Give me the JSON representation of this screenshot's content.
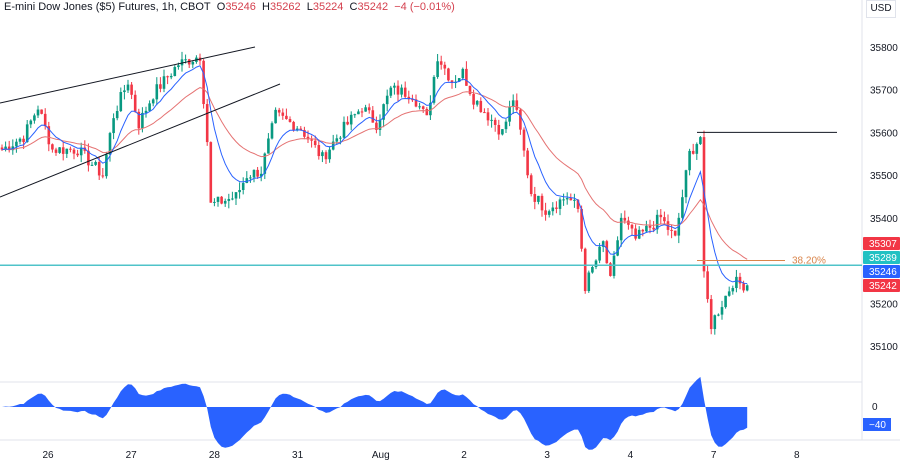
{
  "header": {
    "symbol": "E-mini Dow Jones ($5) Futures, 1h, CBOT",
    "o_label": "O",
    "o": "35246",
    "h_label": "H",
    "h": "35262",
    "l_label": "L",
    "l": "35224",
    "c_label": "C",
    "c": "35242",
    "change": "−4 (−0.01%)",
    "currency": "USD"
  },
  "colors": {
    "up": "#089981",
    "down": "#f23645",
    "ma_fast": "#2962ff",
    "ma_slow": "#e57373",
    "hline": "#4fc3c9",
    "fib": "#d9844a",
    "osc": "#2962ff"
  },
  "chart_data": {
    "type": "candlestick",
    "ylim": [
      35050,
      35850
    ],
    "y_ticks": [
      "35800",
      "35700",
      "35600",
      "35500",
      "35400",
      "35200",
      "35100"
    ],
    "y_tick_values": [
      35800,
      35700,
      35600,
      35500,
      35400,
      35200,
      35100
    ],
    "x_ticks": [
      "26",
      "27",
      "28",
      "31",
      "Aug",
      "2",
      "3",
      "4",
      "7",
      "8"
    ],
    "bars_total": 230,
    "close_waypoints": [
      [
        0,
        35560
      ],
      [
        6,
        35590
      ],
      [
        10,
        35660
      ],
      [
        14,
        35560
      ],
      [
        21,
        35560
      ],
      [
        28,
        35500
      ],
      [
        31,
        35640
      ],
      [
        35,
        35720
      ],
      [
        38,
        35620
      ],
      [
        42,
        35690
      ],
      [
        49,
        35760
      ],
      [
        55,
        35780
      ],
      [
        57,
        35580
      ],
      [
        58,
        35430
      ],
      [
        65,
        35450
      ],
      [
        68,
        35500
      ],
      [
        72,
        35510
      ],
      [
        76,
        35640
      ],
      [
        83,
        35610
      ],
      [
        89,
        35540
      ],
      [
        94,
        35600
      ],
      [
        100,
        35660
      ],
      [
        104,
        35620
      ],
      [
        108,
        35700
      ],
      [
        114,
        35690
      ],
      [
        118,
        35630
      ],
      [
        121,
        35780
      ],
      [
        125,
        35720
      ],
      [
        128,
        35740
      ],
      [
        131,
        35680
      ],
      [
        139,
        35600
      ],
      [
        142,
        35680
      ],
      [
        144,
        35600
      ],
      [
        147,
        35460
      ],
      [
        151,
        35420
      ],
      [
        157,
        35450
      ],
      [
        160,
        35420
      ],
      [
        162,
        35240
      ],
      [
        167,
        35340
      ],
      [
        169,
        35250
      ],
      [
        172,
        35400
      ],
      [
        176,
        35350
      ],
      [
        183,
        35400
      ],
      [
        187,
        35350
      ],
      [
        191,
        35550
      ],
      [
        194,
        35590
      ],
      [
        195,
        35260
      ],
      [
        197,
        35150
      ],
      [
        200,
        35200
      ],
      [
        203,
        35250
      ],
      [
        207,
        35242
      ]
    ],
    "price_labels": [
      {
        "value": "35307",
        "color": "#f23645"
      },
      {
        "value": "35289",
        "color": "#22c1c3"
      },
      {
        "value": "35246",
        "color": "#2962ff"
      },
      {
        "value": "35242",
        "color": "#f23645"
      }
    ],
    "horizontal_line_price": 35289,
    "resistance_line_price": 35600,
    "fib_label": "38.20%",
    "fib_price": 35300,
    "oscillator": {
      "ticks": [
        "0",
        "-40"
      ],
      "current_label": "−40"
    }
  }
}
